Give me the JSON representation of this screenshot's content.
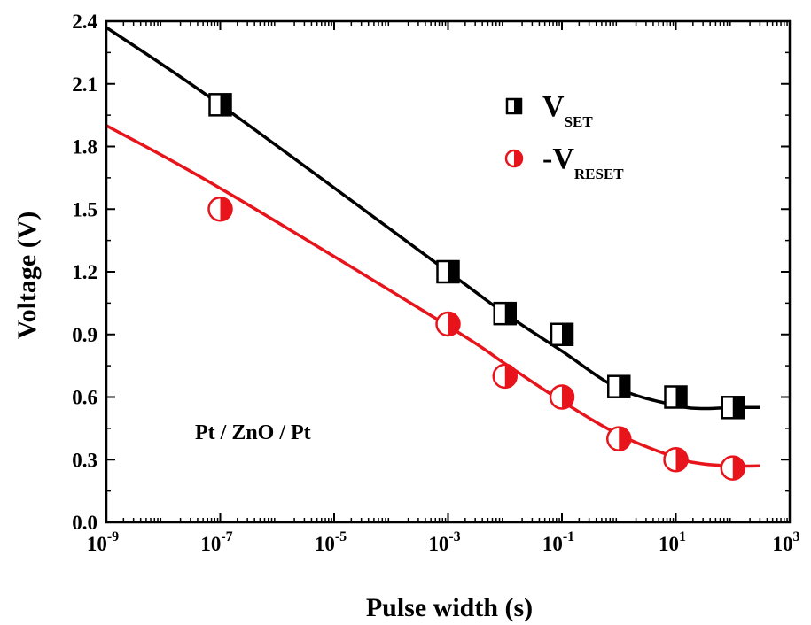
{
  "chart_data": {
    "type": "scatter",
    "title": "",
    "xlabel": "Pulse width (s)",
    "ylabel": "Voltage (V)",
    "x_scale": "log",
    "x_ticks": [
      1e-09,
      1e-07,
      1e-05,
      0.001,
      0.1,
      10.0,
      1000.0
    ],
    "x_tick_bases": [
      "10",
      "10",
      "10",
      "10",
      "10",
      "10",
      "10"
    ],
    "x_tick_exponents": [
      "-9",
      "-7",
      "-5",
      "-3",
      "-1",
      "1",
      "3"
    ],
    "xlim": [
      1e-09,
      1000
    ],
    "y_ticks": [
      "0.0",
      "0.3",
      "0.6",
      "0.9",
      "1.2",
      "1.5",
      "1.8",
      "2.1",
      "2.4"
    ],
    "ylim": [
      0,
      2.4
    ],
    "grid": false,
    "legend_position": "top-right",
    "annotation": "Pt / ZnO / Pt",
    "series": [
      {
        "name_main": "V",
        "name_sub": "SET",
        "color": "#000000",
        "marker": "half-filled-square",
        "x": [
          1e-07,
          0.001,
          0.01,
          0.1,
          1,
          10,
          100
        ],
        "y": [
          2.0,
          1.2,
          1.0,
          0.9,
          0.65,
          0.6,
          0.55
        ],
        "fit": {
          "x": [
            1e-09,
            1e-07,
            0.001,
            0.01,
            0.1,
            1,
            10,
            30,
            100,
            300
          ],
          "y": [
            2.37,
            2.0,
            1.2,
            1.0,
            0.82,
            0.64,
            0.56,
            0.545,
            0.55,
            0.55
          ]
        }
      },
      {
        "name_main": "-V",
        "name_sub": "RESET",
        "color": "#e8141b",
        "marker": "half-filled-circle",
        "x": [
          1e-07,
          0.001,
          0.01,
          0.1,
          1,
          10,
          100
        ],
        "y": [
          1.5,
          0.95,
          0.7,
          0.6,
          0.4,
          0.3,
          0.26
        ],
        "fit": {
          "x": [
            1e-09,
            1e-07,
            0.001,
            0.01,
            0.1,
            1,
            10,
            30,
            100,
            300
          ],
          "y": [
            1.9,
            1.6,
            0.94,
            0.76,
            0.58,
            0.42,
            0.31,
            0.28,
            0.27,
            0.27
          ]
        }
      }
    ]
  }
}
